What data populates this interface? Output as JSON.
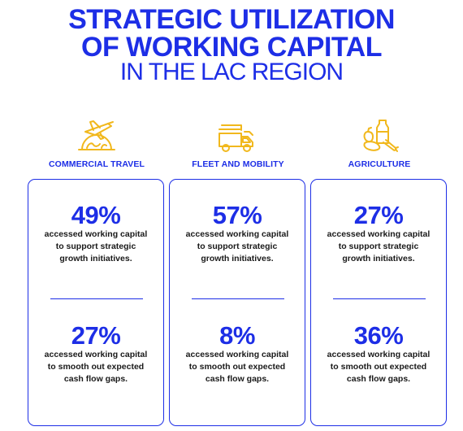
{
  "title": {
    "line1": "STRATEGIC UTILIZATION",
    "line2": "OF WORKING CAPITAL",
    "line3": "IN THE LAC REGION"
  },
  "colors": {
    "accent": "#1d2ee6",
    "icon": "#f1b81d",
    "text": "#1a1a1a"
  },
  "columns": [
    {
      "icon": "plane-globe-icon",
      "label": "COMMERCIAL TRAVEL",
      "stat1": {
        "value": "49%",
        "text": "accessed working capital to support strategic growth initiatives."
      },
      "stat2": {
        "value": "27%",
        "text": "accessed working capital to smooth out expected cash flow gaps."
      }
    },
    {
      "icon": "truck-icon",
      "label": "FLEET AND MOBILITY",
      "stat1": {
        "value": "57%",
        "text": "accessed working capital to support strategic growth initiatives."
      },
      "stat2": {
        "value": "8%",
        "text": "accessed working capital to smooth out expected cash flow gaps."
      }
    },
    {
      "icon": "produce-icon",
      "label": "AGRICULTURE",
      "stat1": {
        "value": "27%",
        "text": "accessed working capital to support strategic growth initiatives."
      },
      "stat2": {
        "value": "36%",
        "text": "accessed working capital to smooth out expected cash flow gaps."
      }
    }
  ]
}
